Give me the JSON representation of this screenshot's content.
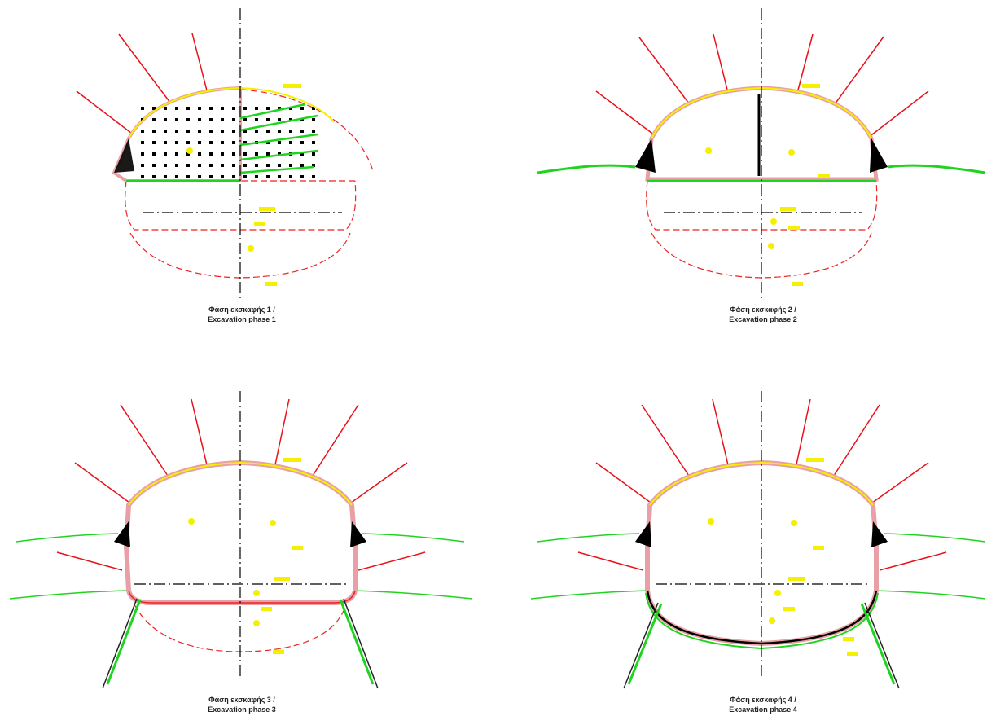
{
  "colors": {
    "background": "#ffffff",
    "anchor": "#e8111a",
    "shotcrete_fill": "#e8a0a6",
    "lining_yellow": "#f4f000",
    "shotcrete_green": "#1fd41f",
    "dashed_red": "#ee2222",
    "axis": "#000000",
    "rock_bolt": "#222222"
  },
  "phases": [
    {
      "caption_gr": "Φάση εκσκαφής 1 /",
      "caption_en": "Excavation phase 1"
    },
    {
      "caption_gr": "Φάση εκσκαφής 2 /",
      "caption_en": "Excavation phase 2"
    },
    {
      "caption_gr": "Φάση εκσκαφής 3 /",
      "caption_en": "Excavation phase 3"
    },
    {
      "caption_gr": "Φάση εκσκαφής 4 /",
      "caption_en": "Excavation phase 4"
    }
  ]
}
